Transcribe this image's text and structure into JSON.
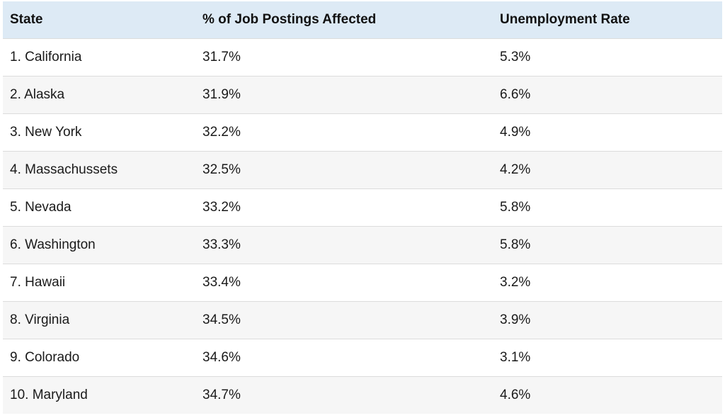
{
  "table": {
    "headers": [
      "State",
      "% of Job Postings Affected",
      "Unemployment Rate"
    ],
    "rows": [
      [
        "1. California",
        "31.7%",
        "5.3%"
      ],
      [
        "2. Alaska",
        "31.9%",
        "6.6%"
      ],
      [
        "3. New York",
        "32.2%",
        "4.9%"
      ],
      [
        "4. Massachussets",
        "32.5%",
        "4.2%"
      ],
      [
        "5. Nevada",
        "33.2%",
        "5.8%"
      ],
      [
        "6. Washington",
        "33.3%",
        "5.8%"
      ],
      [
        "7. Hawaii",
        "33.4%",
        "3.2%"
      ],
      [
        "8. Virginia",
        "34.5%",
        "3.9%"
      ],
      [
        "9. Colorado",
        "34.6%",
        "3.1%"
      ],
      [
        "10. Maryland",
        "34.7%",
        "4.6%"
      ]
    ]
  },
  "colors": {
    "header_background": "#ddeaf5",
    "stripe_background": "#f6f6f6",
    "row_divider": "#dcdcdc"
  }
}
